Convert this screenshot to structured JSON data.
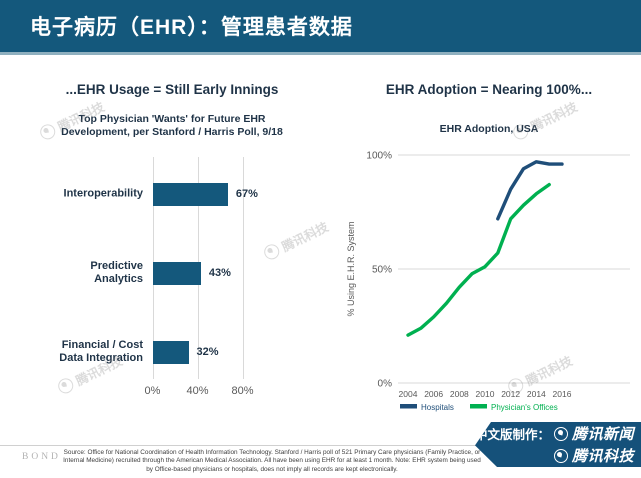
{
  "header": {
    "title": "电子病历（EHR）：管理患者数据"
  },
  "chart_data": [
    {
      "type": "bar",
      "orientation": "horizontal",
      "title": "...EHR Usage = Still Early Innings",
      "subtitle": "Top Physician 'Wants' for Future EHR\nDevelopment, per Stanford / Harris Poll, 9/18",
      "categories": [
        "Interoperability",
        "Predictive\nAnalytics",
        "Financial / Cost\nData Integration"
      ],
      "values": [
        67,
        43,
        32
      ],
      "value_labels": [
        "67%",
        "43%",
        "32%"
      ],
      "xticks": [
        "0%",
        "40%",
        "80%"
      ],
      "xlim": [
        0,
        80
      ],
      "bar_color": "#14587c",
      "grid": true
    },
    {
      "type": "line",
      "title": "EHR Adoption = Nearing 100%...",
      "subtitle": "EHR Adoption, USA",
      "ylabel": "% Using E.H.R. System",
      "yticks": [
        "100%",
        "50%",
        "0%"
      ],
      "ylim": [
        0,
        100
      ],
      "xlim": [
        2004,
        2016
      ],
      "xticks": [
        2004,
        2006,
        2008,
        2010,
        2012,
        2014,
        2016
      ],
      "grid": true,
      "legend_position": "bottom",
      "series": [
        {
          "name": "Hospitals",
          "color": "#1f4e79",
          "x": [
            2011,
            2012,
            2013,
            2014,
            2015,
            2016
          ],
          "values": [
            72,
            85,
            94,
            97,
            96,
            96
          ]
        },
        {
          "name": "Physician's Offices",
          "color": "#00b050",
          "x": [
            2004,
            2005,
            2006,
            2007,
            2008,
            2009,
            2010,
            2011,
            2012,
            2013,
            2014,
            2015
          ],
          "values": [
            21,
            24,
            29,
            35,
            42,
            48,
            51,
            57,
            72,
            78,
            83,
            87
          ]
        }
      ]
    }
  ],
  "footer": {
    "brand": "BOND",
    "source": "Source: Office for National Coordination of Health Information Technology.  Stanford / Harris poll of 521 Primary Care physicians (Family Practice, or Internal Medicine) recruited through the American Medical Association.  All have been using EHR for at least 1 month.  Note: EHR system being used by Office-based physicians or hospitals, does not imply all records are kept electronically."
  },
  "banner": {
    "prefix": "中文版制作：",
    "line1": "腾讯新闻",
    "line2": "腾讯科技"
  },
  "watermark": {
    "text": "腾讯科技"
  },
  "colors": {
    "header_bg": "#14587c",
    "bar_blue": "#14587c",
    "line_navy": "#1f4e79",
    "line_green": "#00b050",
    "gridline": "#d9d9d9"
  }
}
